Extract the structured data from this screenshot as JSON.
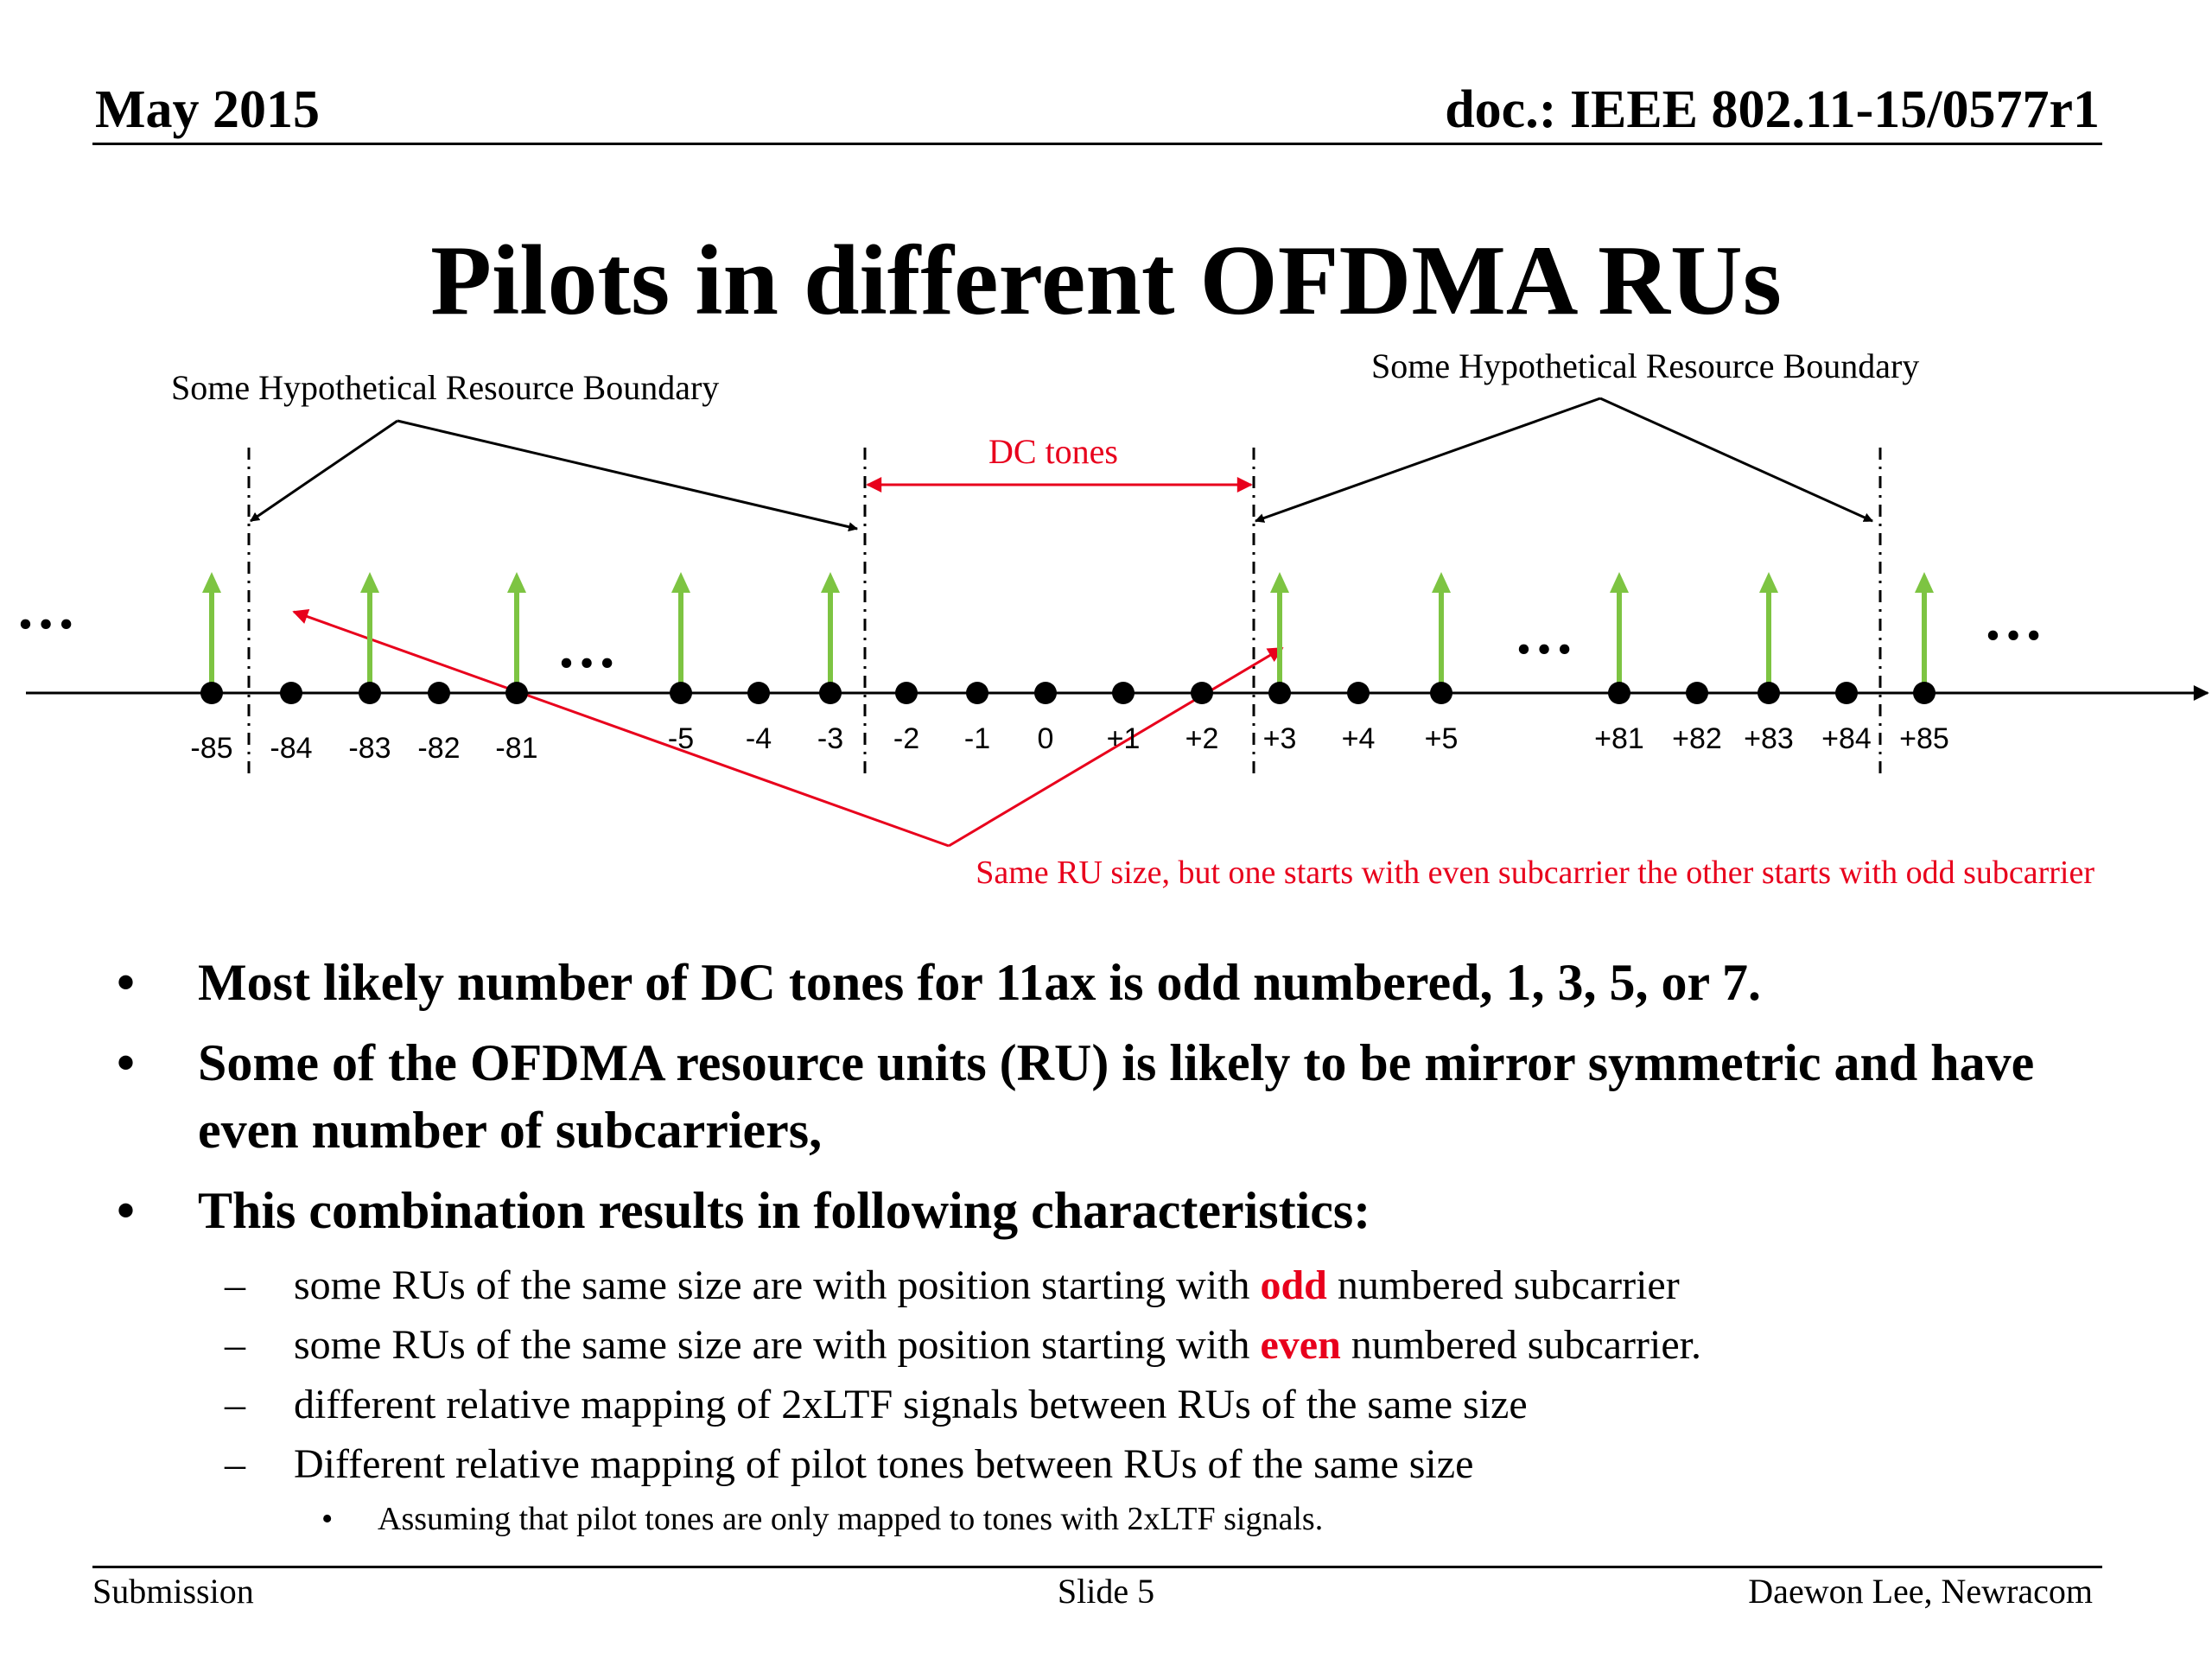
{
  "header": {
    "date": "May 2015",
    "doc": "doc.: IEEE 802.11-15/0577r1"
  },
  "title": "Pilots in different OFDMA RUs",
  "diagram": {
    "boundary_left_label": "Some Hypothetical Resource Boundary",
    "boundary_right_label": "Some Hypothetical Resource Boundary",
    "dc_label": "DC tones",
    "ru_note": "Same RU size, but one starts with even subcarrier the other starts with odd subcarrier",
    "ellipsis": "…",
    "ticks": [
      "-85",
      "-84",
      "-83",
      "-82",
      "-81",
      "-5",
      "-4",
      "-3",
      "-2",
      "-1",
      "0",
      "+1",
      "+2",
      "+3",
      "+4",
      "+5",
      "+81",
      "+82",
      "+83",
      "+84",
      "+85"
    ],
    "pilot_ticks": [
      "-85",
      "-83",
      "-81",
      "-5",
      "-3",
      "+3",
      "+5",
      "+81",
      "+83",
      "+85"
    ],
    "colors": {
      "pilot": "#7dc442",
      "accent": "#e8001c",
      "line": "#000000"
    }
  },
  "bullets": [
    {
      "text": "Most likely number of DC tones for 11ax is odd numbered, 1, 3, 5, or 7."
    },
    {
      "text": "Some of the OFDMA resource units (RU) is likely to be mirror symmetric and have even number of subcarriers,"
    },
    {
      "text": "This combination results in following characteristics:"
    }
  ],
  "sub_bullets": [
    {
      "pre": "some RUs of the same size are with position starting with ",
      "em": "odd",
      "post": " numbered subcarrier"
    },
    {
      "pre": "some RUs of the same size are with position starting with ",
      "em": "even",
      "post": " numbered subcarrier."
    },
    {
      "text": "different relative mapping of 2xLTF signals between RUs of the same size"
    },
    {
      "text": "Different relative mapping of pilot tones between RUs of the same size"
    }
  ],
  "sub_sub_bullet": "Assuming that pilot tones are only mapped to tones with 2xLTF signals.",
  "footer": {
    "left": "Submission",
    "center": "Slide 5",
    "right": "Daewon Lee, Newracom"
  }
}
